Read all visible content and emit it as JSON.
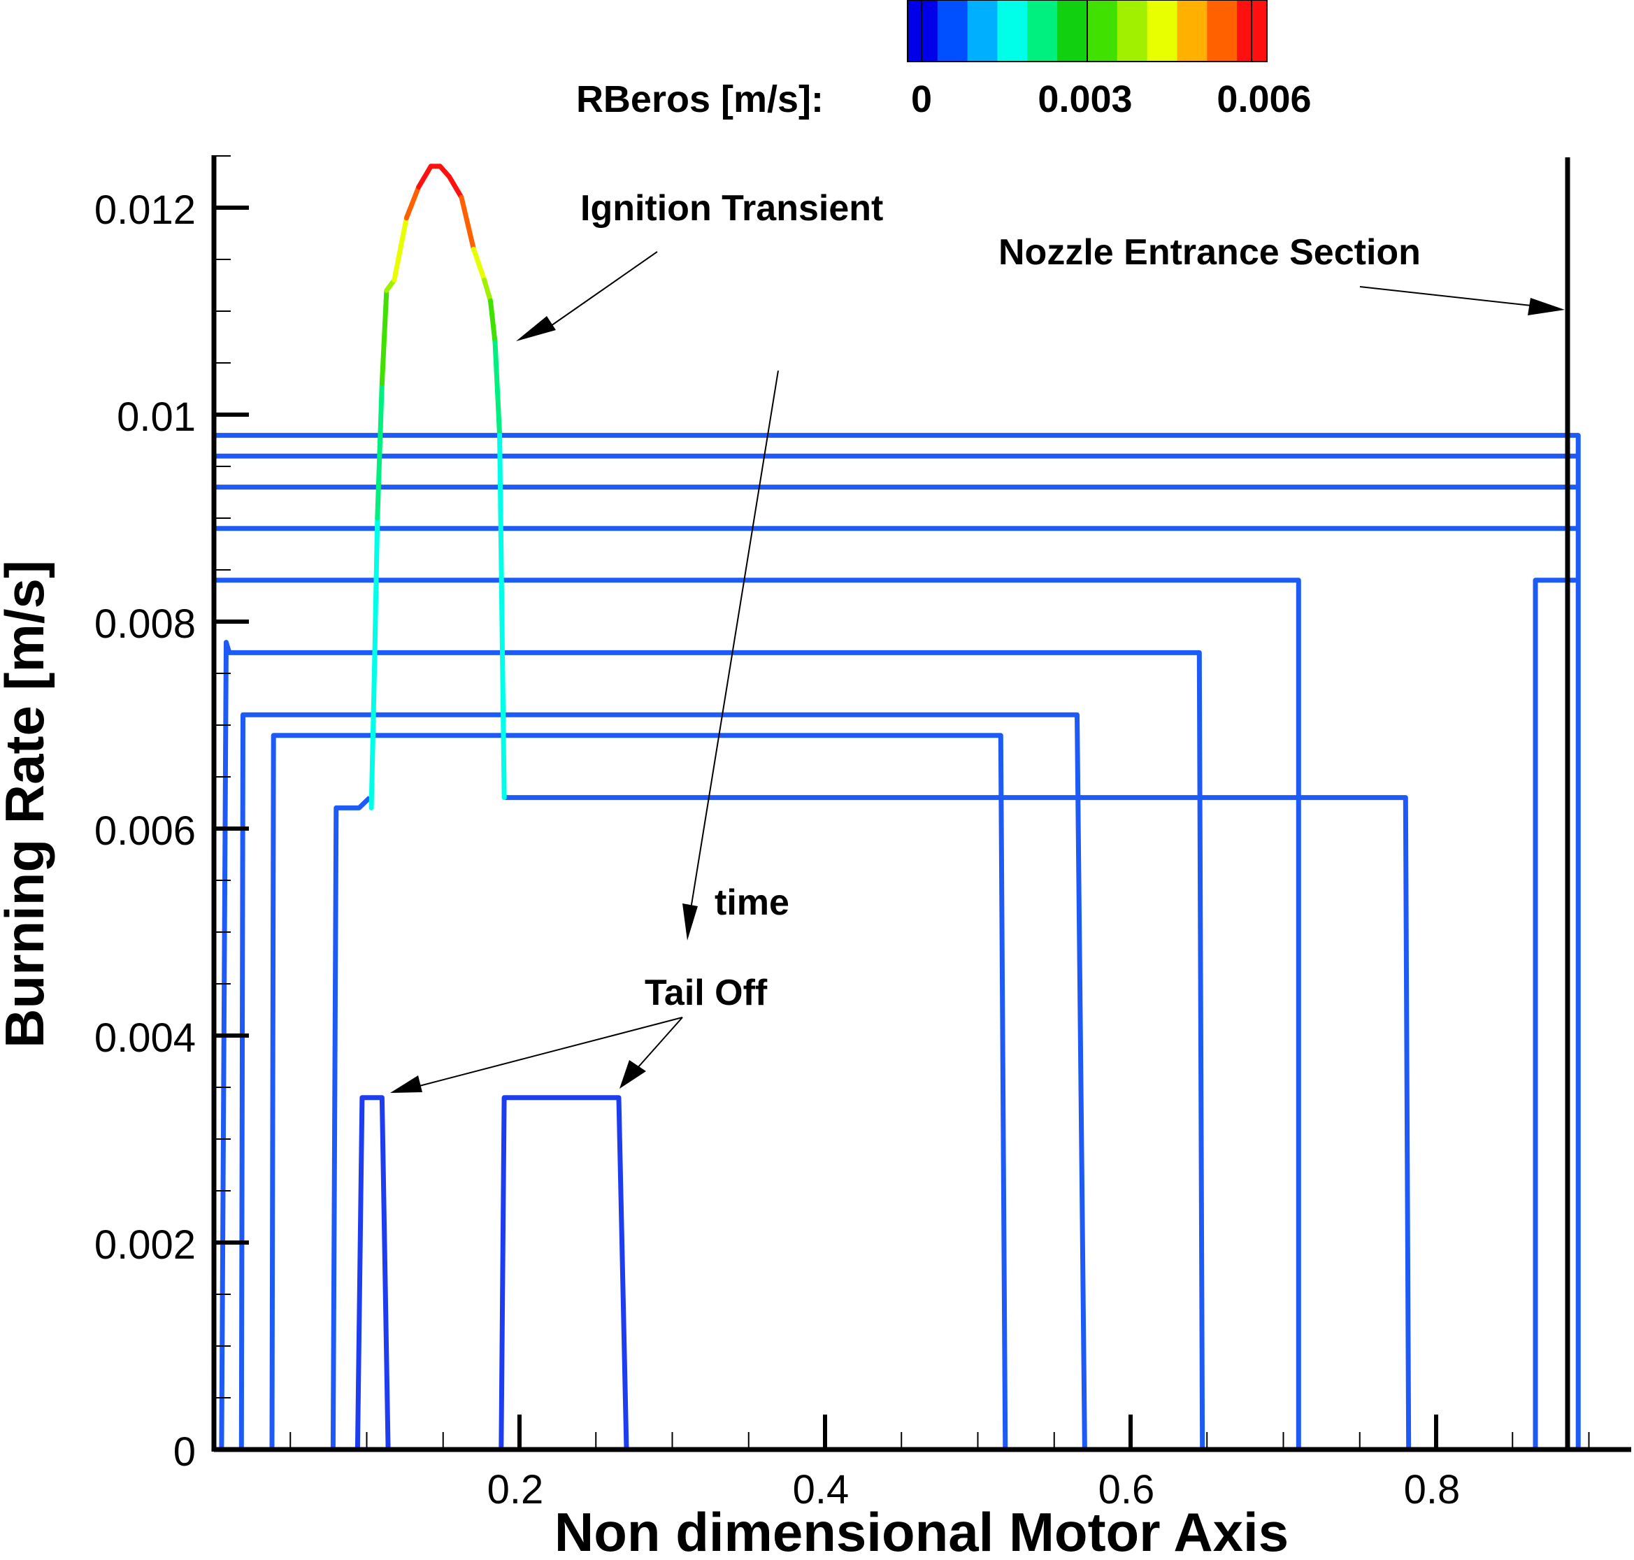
{
  "chart_data": {
    "type": "line",
    "xlabel": "Non dimensional Motor Axis",
    "ylabel": "Burning Rate [m/s]",
    "xlim": [
      0,
      0.92
    ],
    "ylim": [
      0,
      0.0125
    ],
    "x_ticks": [
      "0.2",
      "0.4",
      "0.6",
      "0.8"
    ],
    "x_tick_values": [
      0.2,
      0.4,
      0.6,
      0.8
    ],
    "y_ticks": [
      "0",
      "0.002",
      "0.004",
      "0.006",
      "0.008",
      "0.01",
      "0.012"
    ],
    "y_tick_values": [
      0,
      0.002,
      0.004,
      0.006,
      0.008,
      0.01,
      0.012
    ],
    "grid": false,
    "colorbar": {
      "label": "RBeros [m/s]:",
      "tick_labels": [
        "0",
        "0.003",
        "0.006"
      ],
      "tick_values": [
        0,
        0.003,
        0.006
      ],
      "range": [
        0,
        0.0066
      ],
      "colors": [
        "#0000e8",
        "#0050ff",
        "#00b0ff",
        "#00ffe8",
        "#00f080",
        "#10d010",
        "#40e000",
        "#a0f000",
        "#e8ff00",
        "#ffb000",
        "#ff6000",
        "#ff1010"
      ]
    },
    "annotations": {
      "ignition": "Ignition Transient",
      "nozzle": "Nozzle Entrance Section",
      "time": "time",
      "tailoff": "Tail Off"
    },
    "series": [
      {
        "color": "#1e5af5",
        "points": [
          [
            0.0,
            0.0098
          ],
          [
            0.893,
            0.0098
          ],
          [
            0.893,
            0
          ]
        ]
      },
      {
        "color": "#1e5af5",
        "points": [
          [
            0.0,
            0.0096
          ],
          [
            0.893,
            0.0096
          ]
        ]
      },
      {
        "color": "#1e5af5",
        "points": [
          [
            0.0,
            0.0093
          ],
          [
            0.893,
            0.0093
          ]
        ]
      },
      {
        "color": "#1e5af5",
        "points": [
          [
            0.0,
            0.0089
          ],
          [
            0.893,
            0.0089
          ]
        ]
      },
      {
        "color": "#1e5af5",
        "points": [
          [
            0.0,
            0.0085
          ],
          [
            0.0,
            0.0084
          ],
          [
            0.71,
            0.0084
          ],
          [
            0.71,
            0
          ]
        ]
      },
      {
        "color": "#1e5af5",
        "points": [
          [
            0.865,
            0
          ],
          [
            0.865,
            0.0084
          ],
          [
            0.893,
            0.0084
          ]
        ]
      },
      {
        "color": "#1e5af5",
        "points": [
          [
            0.005,
            0
          ],
          [
            0.008,
            0.0078
          ],
          [
            0.01,
            0.0077
          ],
          [
            0.64,
            0.0077
          ],
          [
            0.645,
            0.0077
          ],
          [
            0.647,
            0
          ]
        ]
      },
      {
        "color": "#1e5af5",
        "points": [
          [
            0.018,
            0
          ],
          [
            0.019,
            0.0071
          ],
          [
            0.565,
            0.0071
          ],
          [
            0.57,
            0
          ]
        ]
      },
      {
        "color": "#1e5af5",
        "points": [
          [
            0.038,
            0
          ],
          [
            0.039,
            0.0069
          ],
          [
            0.515,
            0.0069
          ],
          [
            0.518,
            0
          ]
        ]
      },
      {
        "color": "#1e5af5",
        "points": [
          [
            0.078,
            0
          ],
          [
            0.08,
            0.0062
          ],
          [
            0.095,
            0.0062
          ],
          [
            0.102,
            0.0063
          ]
        ]
      },
      {
        "color": "#1e5af5",
        "points": [
          [
            0.19,
            0.0063
          ],
          [
            0.54,
            0.0063
          ],
          [
            0.78,
            0.0063
          ],
          [
            0.782,
            0
          ]
        ]
      },
      {
        "color": "#1e3cf0",
        "points": [
          [
            0.094,
            0
          ],
          [
            0.097,
            0.0034
          ],
          [
            0.11,
            0.0034
          ],
          [
            0.114,
            0
          ]
        ]
      },
      {
        "color": "#1e3cf0",
        "points": [
          [
            0.188,
            0
          ],
          [
            0.19,
            0.0034
          ],
          [
            0.265,
            0.0034
          ],
          [
            0.27,
            0
          ]
        ]
      }
    ],
    "ignition_curve": {
      "x": [
        0.103,
        0.105,
        0.107,
        0.11,
        0.113,
        0.118,
        0.126,
        0.134,
        0.142,
        0.148,
        0.154,
        0.162,
        0.17,
        0.177,
        0.181,
        0.184,
        0.187,
        0.19
      ],
      "y": [
        0.0062,
        0.0075,
        0.009,
        0.0103,
        0.0112,
        0.0113,
        0.0119,
        0.0122,
        0.0124,
        0.0124,
        0.0123,
        0.0121,
        0.0116,
        0.0113,
        0.0111,
        0.0107,
        0.0098,
        0.0063
      ],
      "rberos": [
        0.0018,
        0.0018,
        0.002,
        0.003,
        0.004,
        0.0045,
        0.0052,
        0.0058,
        0.0064,
        0.0066,
        0.0064,
        0.0058,
        0.0052,
        0.0045,
        0.004,
        0.003,
        0.0022,
        0.0018
      ]
    }
  }
}
